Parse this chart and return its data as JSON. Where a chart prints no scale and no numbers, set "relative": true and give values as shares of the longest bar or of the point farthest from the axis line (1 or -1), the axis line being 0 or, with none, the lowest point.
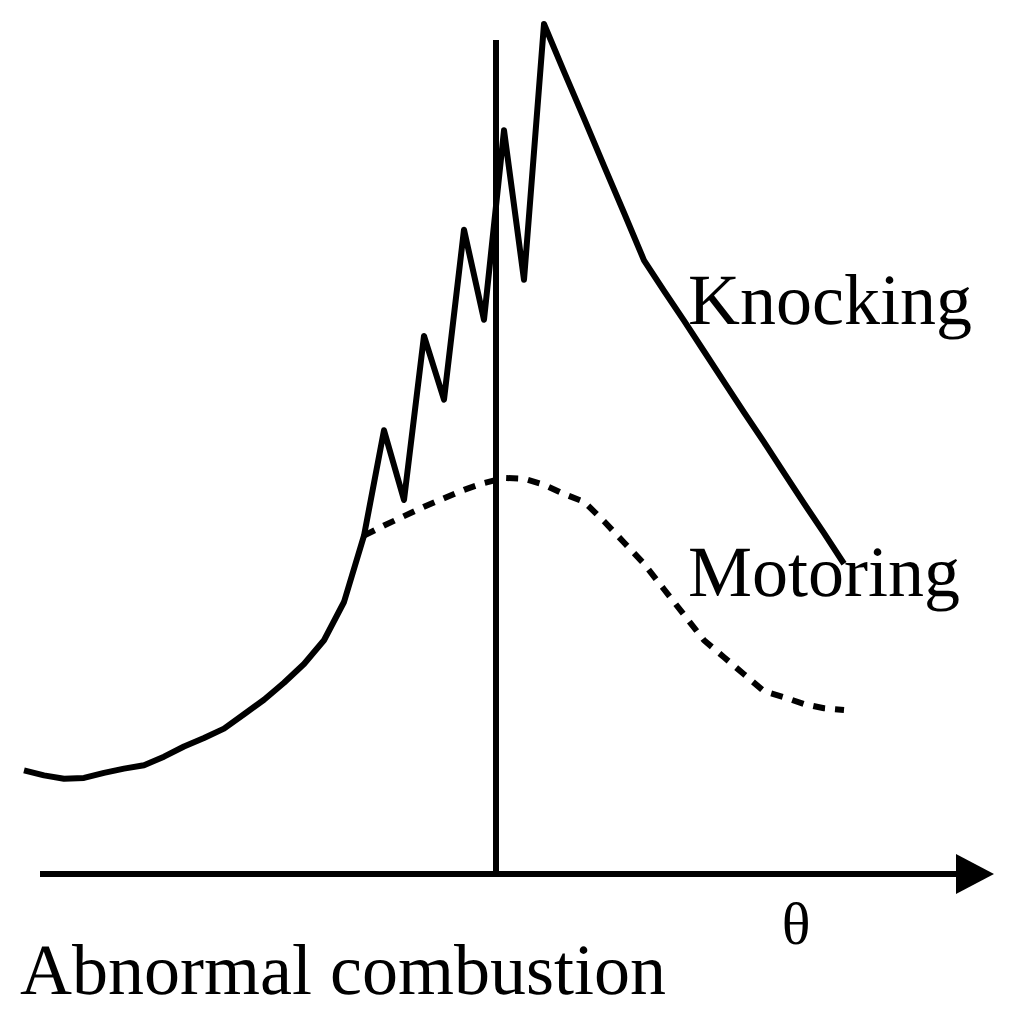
{
  "chart_data": {
    "type": "line",
    "relative": true,
    "title": "Abnormal combustion",
    "xlabel": "θ",
    "marker": "none",
    "categories": [
      null,
      null,
      null,
      null,
      null,
      null,
      null,
      null,
      null,
      null,
      null,
      null,
      null,
      null,
      null,
      null,
      null,
      null,
      null,
      null,
      null,
      null,
      null,
      null,
      null,
      null,
      null,
      null,
      null,
      null,
      null,
      null,
      null,
      null,
      null,
      null,
      null,
      null,
      null,
      null,
      null,
      null
    ],
    "series": [
      {
        "name": "Knocking",
        "color": "#000000",
        "line_style": "solid",
        "values": [
          0.122,
          0.116,
          0.112,
          0.113,
          0.119,
          0.124,
          0.128,
          0.138,
          0.15,
          0.16,
          0.171,
          0.188,
          0.205,
          0.225,
          0.247,
          0.275,
          0.32,
          0.398,
          0.522,
          0.44,
          0.633,
          0.558,
          0.758,
          0.652,
          0.875,
          0.699,
          1,
          0.944,
          0.889,
          0.833,
          0.778,
          0.722,
          0.686,
          0.651,
          0.615,
          0.579,
          0.543,
          0.508,
          0.472,
          0.436,
          0.401,
          0.365
        ]
      },
      {
        "name": "Motoring",
        "color": "#000000",
        "line_style": "dashed",
        "values": [
          null,
          null,
          null,
          null,
          null,
          null,
          null,
          null,
          null,
          null,
          null,
          null,
          null,
          null,
          null,
          null,
          null,
          0.398,
          0.41,
          0.421,
          0.432,
          0.442,
          0.452,
          0.46,
          0.466,
          0.465,
          0.458,
          0.447,
          0.438,
          0.415,
          0.39,
          0.365,
          0.335,
          0.305,
          0.275,
          0.255,
          0.235,
          0.215,
          0.208,
          0.2,
          0.195,
          0.193
        ]
      }
    ]
  }
}
